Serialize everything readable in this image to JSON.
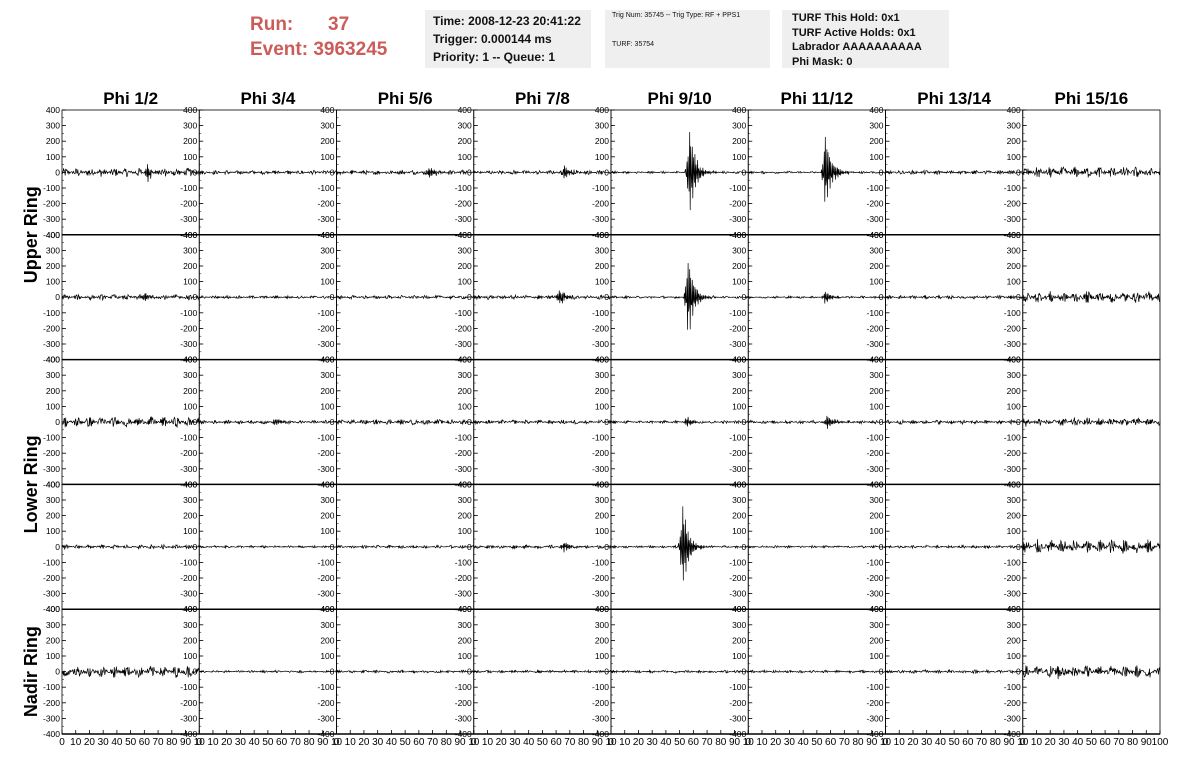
{
  "header": {
    "run_label": "Run:",
    "run_value": "37",
    "event_label": "Event:",
    "event_value": "3963245",
    "time": "Time: 2008-12-23 20:41:22",
    "trigger": "Trigger: 0.000144 ms",
    "priority": "Priority: 1 -- Queue: 1",
    "trig_info": "Trig Num: 35745 -- Trig Type: RF + PPS1",
    "turf_info": "TURF: 35754",
    "turf_hold": "TURF This Hold: 0x1",
    "turf_active": "TURF Active Holds: 0x1",
    "labrador": "Labrador AAAAAAAAAA",
    "phi_mask": "Phi Mask: 0"
  },
  "chart_data": {
    "type": "line",
    "columns": [
      "Phi 1/2",
      "Phi 3/4",
      "Phi 5/6",
      "Phi 7/8",
      "Phi 9/10",
      "Phi 11/12",
      "Phi 13/14",
      "Phi 15/16"
    ],
    "ring_labels": [
      "Upper Ring",
      "Lower Ring",
      "Nadir Ring"
    ],
    "ylim": [
      -400,
      400
    ],
    "xlim": [
      0,
      100
    ],
    "y_ticks": [
      400,
      300,
      200,
      100,
      0,
      -100,
      -200,
      -300,
      -400
    ],
    "x_tick_labels": [
      "0",
      "10",
      "20",
      "30",
      "40",
      "50",
      "60",
      "70",
      "80",
      "90",
      "10"
    ],
    "x_tick_labels_last": [
      "0",
      "10",
      "20",
      "30",
      "40",
      "50",
      "60",
      "70",
      "80",
      "90",
      "100"
    ],
    "grid": false,
    "panels": [
      [
        {
          "noise": 30,
          "pulse_x": 62,
          "pulse_amp": 60
        },
        {
          "noise": 14,
          "pulse_x": 0,
          "pulse_amp": 0
        },
        {
          "noise": 16,
          "pulse_x": 68,
          "pulse_amp": 45
        },
        {
          "noise": 14,
          "pulse_x": 66,
          "pulse_amp": 50
        },
        {
          "noise": 8,
          "pulse_x": 57,
          "pulse_amp": 360
        },
        {
          "noise": 8,
          "pulse_x": 56,
          "pulse_amp": 300
        },
        {
          "noise": 14,
          "pulse_x": 0,
          "pulse_amp": 0
        },
        {
          "noise": 38,
          "pulse_x": 0,
          "pulse_amp": 0
        }
      ],
      [
        {
          "noise": 18,
          "pulse_x": 60,
          "pulse_amp": 40
        },
        {
          "noise": 10,
          "pulse_x": 0,
          "pulse_amp": 0
        },
        {
          "noise": 12,
          "pulse_x": 0,
          "pulse_amp": 0
        },
        {
          "noise": 16,
          "pulse_x": 62,
          "pulse_amp": 70
        },
        {
          "noise": 8,
          "pulse_x": 56,
          "pulse_amp": 330
        },
        {
          "noise": 8,
          "pulse_x": 56,
          "pulse_amp": 50
        },
        {
          "noise": 12,
          "pulse_x": 0,
          "pulse_amp": 0
        },
        {
          "noise": 40,
          "pulse_x": 0,
          "pulse_amp": 0
        }
      ],
      [
        {
          "noise": 35,
          "pulse_x": 0,
          "pulse_amp": 0
        },
        {
          "noise": 12,
          "pulse_x": 55,
          "pulse_amp": 30
        },
        {
          "noise": 18,
          "pulse_x": 0,
          "pulse_amp": 0
        },
        {
          "noise": 14,
          "pulse_x": 0,
          "pulse_amp": 0
        },
        {
          "noise": 10,
          "pulse_x": 55,
          "pulse_amp": 45
        },
        {
          "noise": 12,
          "pulse_x": 57,
          "pulse_amp": 60
        },
        {
          "noise": 14,
          "pulse_x": 0,
          "pulse_amp": 0
        },
        {
          "noise": 30,
          "pulse_x": 0,
          "pulse_amp": 0
        }
      ],
      [
        {
          "noise": 14,
          "pulse_x": 0,
          "pulse_amp": 0
        },
        {
          "noise": 8,
          "pulse_x": 0,
          "pulse_amp": 0
        },
        {
          "noise": 10,
          "pulse_x": 0,
          "pulse_amp": 0
        },
        {
          "noise": 12,
          "pulse_x": 66,
          "pulse_amp": 40
        },
        {
          "noise": 8,
          "pulse_x": 52,
          "pulse_amp": 330
        },
        {
          "noise": 8,
          "pulse_x": 0,
          "pulse_amp": 0
        },
        {
          "noise": 10,
          "pulse_x": 0,
          "pulse_amp": 0
        },
        {
          "noise": 50,
          "pulse_x": 0,
          "pulse_amp": 0
        }
      ],
      [
        {
          "noise": 40,
          "pulse_x": 0,
          "pulse_amp": 0
        },
        {
          "noise": 8,
          "pulse_x": 0,
          "pulse_amp": 0
        },
        {
          "noise": 10,
          "pulse_x": 0,
          "pulse_amp": 0
        },
        {
          "noise": 10,
          "pulse_x": 0,
          "pulse_amp": 0
        },
        {
          "noise": 10,
          "pulse_x": 0,
          "pulse_amp": 0
        },
        {
          "noise": 10,
          "pulse_x": 0,
          "pulse_amp": 0
        },
        {
          "noise": 12,
          "pulse_x": 0,
          "pulse_amp": 0
        },
        {
          "noise": 40,
          "pulse_x": 25,
          "pulse_amp": 60
        }
      ]
    ]
  }
}
